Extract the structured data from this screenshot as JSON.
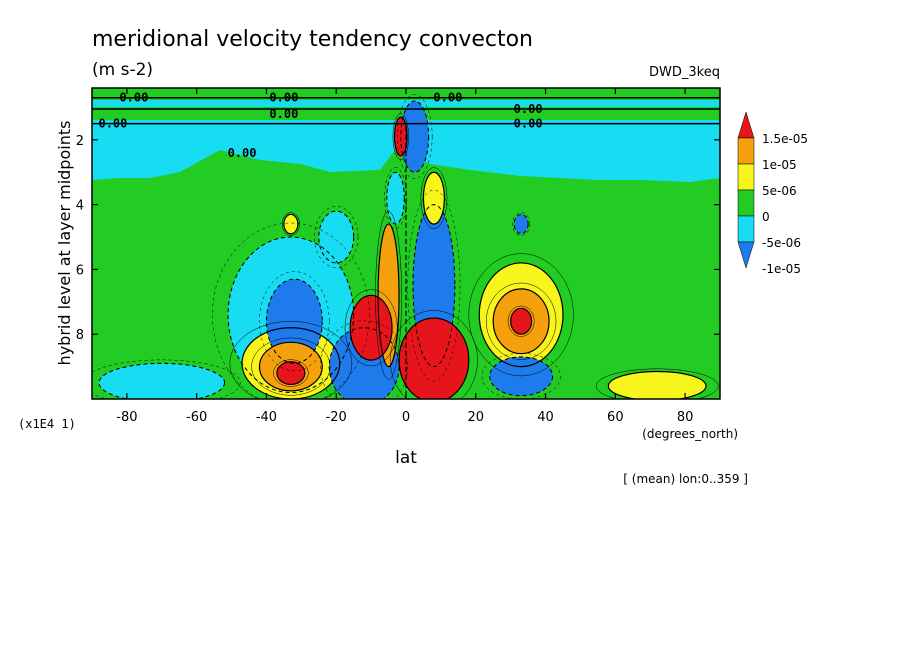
{
  "chart_data": {
    "type": "heatmap",
    "title": "meridional velocity tendency convecton",
    "units": "(m s-2)",
    "dataset": "DWD_3keq",
    "xlabel": "lat",
    "xunits": "(degrees_north)",
    "ylabel": "hybrid level at layer midpoints",
    "yscale_note": "(x1E4 1)",
    "footnote": "[ (mean) lon:0..359 ]",
    "xlim": [
      -90,
      90
    ],
    "ylim": [
      10,
      0.4
    ],
    "x_ticks": [
      {
        "value": -80,
        "label": "-80"
      },
      {
        "value": -60,
        "label": "-60"
      },
      {
        "value": -40,
        "label": "-40"
      },
      {
        "value": -20,
        "label": "-20"
      },
      {
        "value": 0,
        "label": "0"
      },
      {
        "value": 20,
        "label": "20"
      },
      {
        "value": 40,
        "label": "40"
      },
      {
        "value": 60,
        "label": "60"
      },
      {
        "value": 80,
        "label": "80"
      }
    ],
    "y_ticks": [
      {
        "value": 2,
        "label": "2"
      },
      {
        "value": 4,
        "label": "4"
      },
      {
        "value": 6,
        "label": "6"
      },
      {
        "value": 8,
        "label": "8"
      }
    ],
    "colorbar": [
      {
        "label": "1.5e-05",
        "color": "#e8141b"
      },
      {
        "label": "1e-05",
        "color": "#f5a10d"
      },
      {
        "label": "5e-06",
        "color": "#f7f51c"
      },
      {
        "label": "0",
        "color": "#22cc22"
      },
      {
        "label": "-5e-06",
        "color": "#18dcf2"
      },
      {
        "label": "-1e-05",
        "color": "#1e7bec"
      }
    ],
    "contour_labels": [
      {
        "text": "0.00",
        "x": -78,
        "y": 0.7
      },
      {
        "text": "0.00",
        "x": -35,
        "y": 0.7
      },
      {
        "text": "0.00",
        "x": -35,
        "y": 1.2
      },
      {
        "text": "0.00",
        "x": -84,
        "y": 1.5
      },
      {
        "text": "0.00",
        "x": -47,
        "y": 2.4
      },
      {
        "text": "0.00",
        "x": 12,
        "y": 0.7
      },
      {
        "text": "0.00",
        "x": 35,
        "y": 1.05
      },
      {
        "text": "0.00",
        "x": 35,
        "y": 1.5
      }
    ],
    "features": [
      {
        "x": -33,
        "y": 9.2,
        "value": 1.5e-05,
        "rx": 4,
        "ry": 0.35
      },
      {
        "x": -33,
        "y": 9.0,
        "value": 1e-05,
        "rx": 9,
        "ry": 0.75
      },
      {
        "x": -33,
        "y": 8.9,
        "value": 5e-06,
        "rx": 14,
        "ry": 1.1
      },
      {
        "x": -32,
        "y": 7.6,
        "value": -1e-05,
        "rx": 8,
        "ry": 1.3
      },
      {
        "x": -33,
        "y": 7.4,
        "value": -5e-06,
        "rx": 18,
        "ry": 2.4
      },
      {
        "x": -70,
        "y": 9.5,
        "value": -5e-06,
        "rx": 18,
        "ry": 0.6
      },
      {
        "x": -20,
        "y": 5.0,
        "value": -5e-06,
        "rx": 5,
        "ry": 0.8
      },
      {
        "x": -33,
        "y": 4.6,
        "value": 5e-06,
        "rx": 2,
        "ry": 0.3
      },
      {
        "x": 33,
        "y": 7.6,
        "value": 1.5e-05,
        "rx": 3,
        "ry": 0.4
      },
      {
        "x": 33,
        "y": 7.6,
        "value": 1e-05,
        "rx": 8,
        "ry": 1.0
      },
      {
        "x": 33,
        "y": 7.4,
        "value": 5e-06,
        "rx": 12,
        "ry": 1.6
      },
      {
        "x": 33,
        "y": 9.3,
        "value": -1e-05,
        "rx": 9,
        "ry": 0.6
      },
      {
        "x": 33,
        "y": 4.6,
        "value": -1e-05,
        "rx": 2,
        "ry": 0.3
      },
      {
        "x": 72,
        "y": 9.6,
        "value": 5e-06,
        "rx": 14,
        "ry": 0.45
      },
      {
        "x": -10,
        "y": 7.8,
        "value": 1.5e-05,
        "rx": 6,
        "ry": 1.0
      },
      {
        "x": -5,
        "y": 6.8,
        "value": 1e-05,
        "rx": 3,
        "ry": 2.2
      },
      {
        "x": 8,
        "y": 8.8,
        "value": 1.5e-05,
        "rx": 10,
        "ry": 1.3
      },
      {
        "x": 8,
        "y": 6.5,
        "value": -1e-05,
        "rx": 6,
        "ry": 2.5
      },
      {
        "x": -12,
        "y": 9.0,
        "value": -1e-05,
        "rx": 10,
        "ry": 1.2
      },
      {
        "x": -1.5,
        "y": 1.9,
        "value": 1.5e-05,
        "rx": 1.8,
        "ry": 0.6
      },
      {
        "x": 2.5,
        "y": 1.9,
        "value": -1e-05,
        "rx": 4,
        "ry": 1.1
      },
      {
        "x": 8,
        "y": 3.8,
        "value": 5e-06,
        "rx": 3,
        "ry": 0.8
      },
      {
        "x": -3,
        "y": 3.8,
        "value": -5e-06,
        "rx": 2.5,
        "ry": 0.8
      }
    ]
  }
}
